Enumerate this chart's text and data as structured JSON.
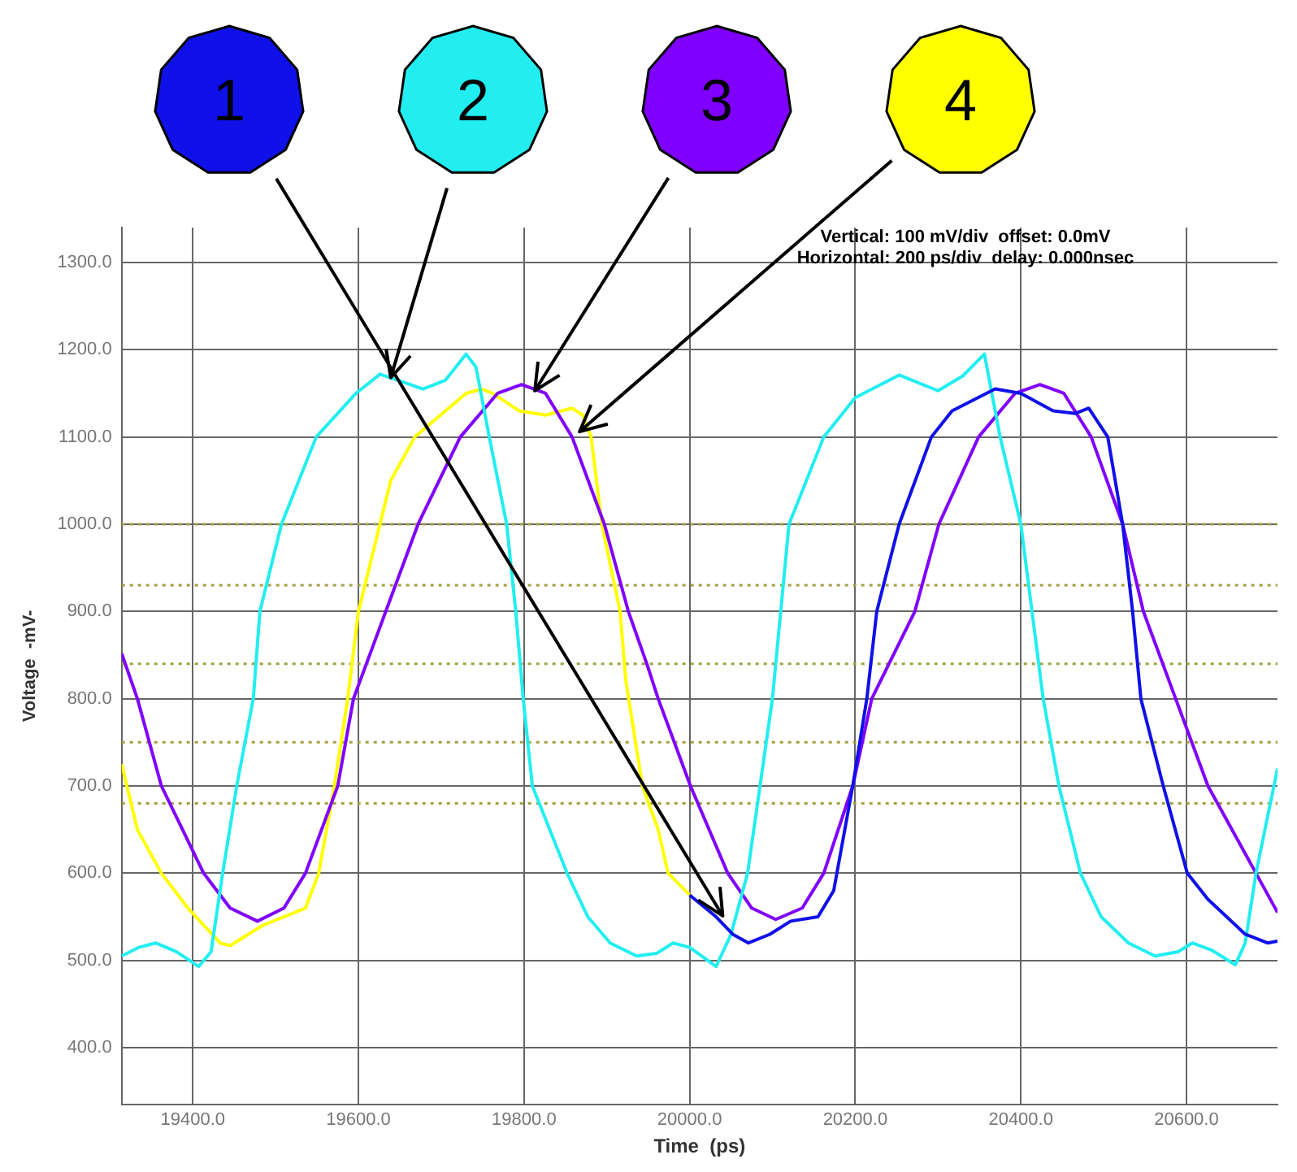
{
  "chart_data": {
    "type": "line",
    "xlabel": "Time  (ps)",
    "ylabel": "Voltage  -mV-",
    "xlim": [
      19314,
      20710
    ],
    "ylim": [
      335,
      1340
    ],
    "xticks": [
      {
        "value": 19400,
        "label": "19400.0"
      },
      {
        "value": 19600,
        "label": "19600.0"
      },
      {
        "value": 19800,
        "label": "19800.0"
      },
      {
        "value": 20000,
        "label": "20000.0"
      },
      {
        "value": 20200,
        "label": "20200.0"
      },
      {
        "value": 20400,
        "label": "20400.0"
      },
      {
        "value": 20600,
        "label": "20600.0"
      }
    ],
    "yticks": [
      {
        "value": 400,
        "label": "400.0"
      },
      {
        "value": 500,
        "label": "500.0"
      },
      {
        "value": 600,
        "label": "600.0"
      },
      {
        "value": 700,
        "label": "700.0"
      },
      {
        "value": 800,
        "label": "800.0"
      },
      {
        "value": 900,
        "label": "900.0"
      },
      {
        "value": 1000,
        "label": "1000.0"
      },
      {
        "value": 1100,
        "label": "1100.0"
      },
      {
        "value": 1200,
        "label": "1200.0"
      },
      {
        "value": 1300,
        "label": "1300.0"
      }
    ],
    "grid": true,
    "legend": false,
    "marker": "none",
    "line_style": "solid",
    "series": [
      {
        "color": "#1010e8",
        "x": [
          20000,
          20032,
          20052,
          20071,
          20097,
          20122,
          20155,
          20174,
          20197,
          20214,
          20226,
          20253,
          20292,
          20317,
          20369,
          20400,
          20439,
          20466,
          20482,
          20505,
          20523,
          20535,
          20545,
          20572,
          20601,
          20626,
          20671,
          20698,
          20710
        ],
        "values": [
          575,
          550,
          530,
          520,
          530,
          545,
          550,
          580,
          700,
          800,
          900,
          1000,
          1100,
          1130,
          1155,
          1150,
          1130,
          1127,
          1133,
          1100,
          1000,
          900,
          800,
          700,
          600,
          570,
          530,
          520,
          522
        ]
      },
      {
        "color": "#22eef0",
        "x": [
          19314,
          19335,
          19355,
          19380,
          19407,
          19422,
          19436,
          19453,
          19473,
          19481,
          19507,
          19549,
          19597,
          19626,
          19678,
          19705,
          19730,
          19742,
          19758,
          19779,
          19790,
          19799,
          19810,
          19852,
          19877,
          19904,
          19936,
          19960,
          19980,
          20000,
          20032,
          20050,
          20070,
          20085,
          20100,
          20110,
          20120,
          20162,
          20200,
          20253,
          20300,
          20330,
          20356,
          20375,
          20400,
          20427,
          20446,
          20472,
          20497,
          20530,
          20562,
          20590,
          20607,
          20630,
          20659,
          20671,
          20684,
          20710
        ],
        "values": [
          505,
          515,
          520,
          510,
          493,
          510,
          600,
          700,
          800,
          900,
          1000,
          1100,
          1150,
          1172,
          1155,
          1165,
          1195,
          1180,
          1100,
          1000,
          900,
          800,
          700,
          600,
          550,
          520,
          505,
          508,
          520,
          515,
          493,
          530,
          600,
          700,
          800,
          900,
          1000,
          1100,
          1145,
          1171,
          1153,
          1170,
          1195,
          1100,
          1000,
          800,
          700,
          600,
          550,
          520,
          505,
          510,
          520,
          512,
          495,
          520,
          600,
          720
        ]
      },
      {
        "color": "#8000ff",
        "x": [
          19314,
          19333,
          19362,
          19413,
          19445,
          19478,
          19510,
          19536,
          19575,
          19594,
          19633,
          19672,
          19723,
          19768,
          19797,
          19826,
          19858,
          19897,
          19926,
          19949,
          19962,
          20001,
          20046,
          20075,
          20104,
          20136,
          20162,
          20197,
          20220,
          20272,
          20301,
          20349,
          20393,
          20423,
          20452,
          20485,
          20523,
          20548,
          20587,
          20626,
          20684,
          20710
        ],
        "values": [
          852,
          800,
          700,
          600,
          560,
          545,
          560,
          600,
          700,
          800,
          900,
          1000,
          1100,
          1150,
          1160,
          1150,
          1100,
          1000,
          900,
          838,
          800,
          700,
          600,
          560,
          547,
          560,
          600,
          700,
          800,
          900,
          1000,
          1100,
          1150,
          1160,
          1150,
          1100,
          1000,
          900,
          800,
          700,
          600,
          555
        ]
      },
      {
        "color": "#ffff00",
        "x": [
          19314,
          19333,
          19362,
          19394,
          19433,
          19445,
          19484,
          19510,
          19536,
          19552,
          19571,
          19587,
          19600,
          19626,
          19639,
          19668,
          19730,
          19749,
          19762,
          19794,
          19826,
          19858,
          19871,
          19881,
          19894,
          19916,
          19923,
          19943,
          19962,
          19974,
          20000
        ],
        "values": [
          725,
          650,
          600,
          560,
          520,
          517,
          540,
          550,
          560,
          600,
          700,
          800,
          900,
          1000,
          1050,
          1100,
          1150,
          1155,
          1150,
          1130,
          1125,
          1133,
          1125,
          1100,
          1000,
          900,
          820,
          700,
          650,
          600,
          575
        ]
      }
    ],
    "ref_lines": [
      {
        "axis": "y",
        "value": 1000,
        "color": "#a0a040",
        "line_style": "dotted"
      },
      {
        "axis": "y",
        "value": 930,
        "color": "#a0a040",
        "line_style": "dotted"
      },
      {
        "axis": "y",
        "value": 840,
        "color": "#a0a040",
        "line_style": "dotted"
      },
      {
        "axis": "y",
        "value": 750,
        "color": "#a0a040",
        "line_style": "dotted"
      },
      {
        "axis": "y",
        "value": 680,
        "color": "#a0a040",
        "line_style": "dotted"
      }
    ],
    "annotations": [
      "Vertical: 100 mV/div  offset: 0.0mV",
      "Horizontal: 200 ps/div  delay: 0.000nsec",
      {
        "text": "1",
        "x": 20040,
        "y": 551
      },
      {
        "text": "2",
        "x": 19639,
        "y": 1168
      },
      {
        "text": "3",
        "x": 19813,
        "y": 1153
      },
      {
        "text": "4",
        "x": 19867,
        "y": 1106
      }
    ]
  }
}
